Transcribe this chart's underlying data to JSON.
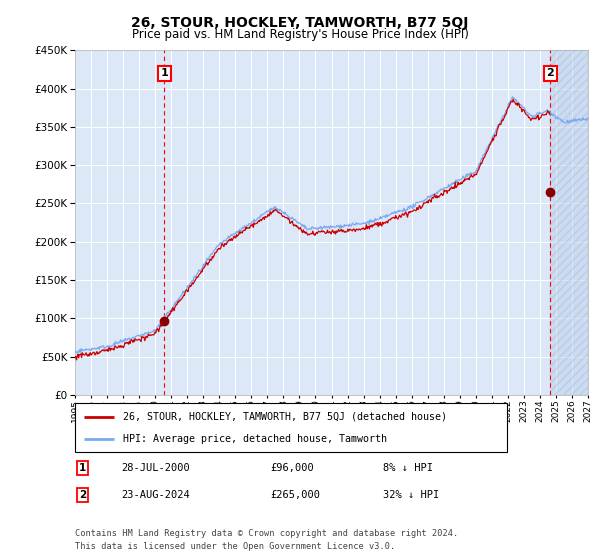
{
  "title": "26, STOUR, HOCKLEY, TAMWORTH, B77 5QJ",
  "subtitle": "Price paid vs. HM Land Registry's House Price Index (HPI)",
  "hpi_label": "HPI: Average price, detached house, Tamworth",
  "price_label": "26, STOUR, HOCKLEY, TAMWORTH, B77 5QJ (detached house)",
  "annotation1_date": "28-JUL-2000",
  "annotation1_price": 96000,
  "annotation1_year": 2000.57,
  "annotation1_pct": "8% ↓ HPI",
  "annotation2_date": "23-AUG-2024",
  "annotation2_price": 265000,
  "annotation2_year": 2024.64,
  "annotation2_pct": "32% ↓ HPI",
  "footnote1": "Contains HM Land Registry data © Crown copyright and database right 2024.",
  "footnote2": "This data is licensed under the Open Government Licence v3.0.",
  "ylim_min": 0,
  "ylim_max": 450000,
  "xlim_min": 1995,
  "xlim_max": 2027,
  "plot_bg_color": "#dce8f8",
  "grid_color": "#ffffff",
  "hpi_color": "#7aaaee",
  "price_color": "#cc0000",
  "hatch_color": "#b8cce8"
}
